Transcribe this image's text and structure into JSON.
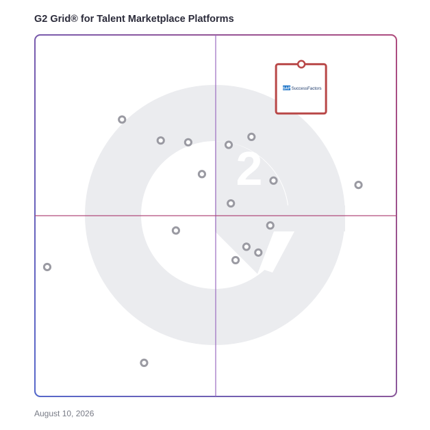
{
  "header": {
    "title": "G2 Grid® for Talent Marketplace Platforms"
  },
  "footer": {
    "date": "August 10, 2026"
  },
  "colors": {
    "top_left": "#6a3fd0",
    "top_right": "#ec5d2f",
    "bottom_left": "#2a9bd6",
    "bottom_right": "#8a3ab0",
    "dot_stroke": "#9a9aa2",
    "featured_frame": "#b84747",
    "watermark": "#ebecef"
  },
  "chart_data": {
    "type": "scatter",
    "xlim": [
      0,
      100
    ],
    "ylim": [
      0,
      100
    ],
    "quadrant_divider": {
      "x": 50,
      "y": 50
    },
    "watermark": "G2-logo",
    "points": [
      {
        "x": 24.1,
        "y": 76.6
      },
      {
        "x": 34.8,
        "y": 70.8
      },
      {
        "x": 42.4,
        "y": 70.3
      },
      {
        "x": 53.6,
        "y": 69.6
      },
      {
        "x": 59.9,
        "y": 71.8
      },
      {
        "x": 46.2,
        "y": 61.5
      },
      {
        "x": 66.0,
        "y": 59.7
      },
      {
        "x": 89.5,
        "y": 58.5
      },
      {
        "x": 54.2,
        "y": 53.4
      },
      {
        "x": 39.0,
        "y": 45.9
      },
      {
        "x": 65.1,
        "y": 47.3
      },
      {
        "x": 58.5,
        "y": 41.4
      },
      {
        "x": 61.8,
        "y": 39.8
      },
      {
        "x": 55.5,
        "y": 37.7
      },
      {
        "x": 3.4,
        "y": 35.8
      },
      {
        "x": 30.2,
        "y": 9.3
      }
    ],
    "featured": {
      "label": "SuccessFactors",
      "brand": "SAP",
      "x": 73.7,
      "y": 91.9
    }
  }
}
